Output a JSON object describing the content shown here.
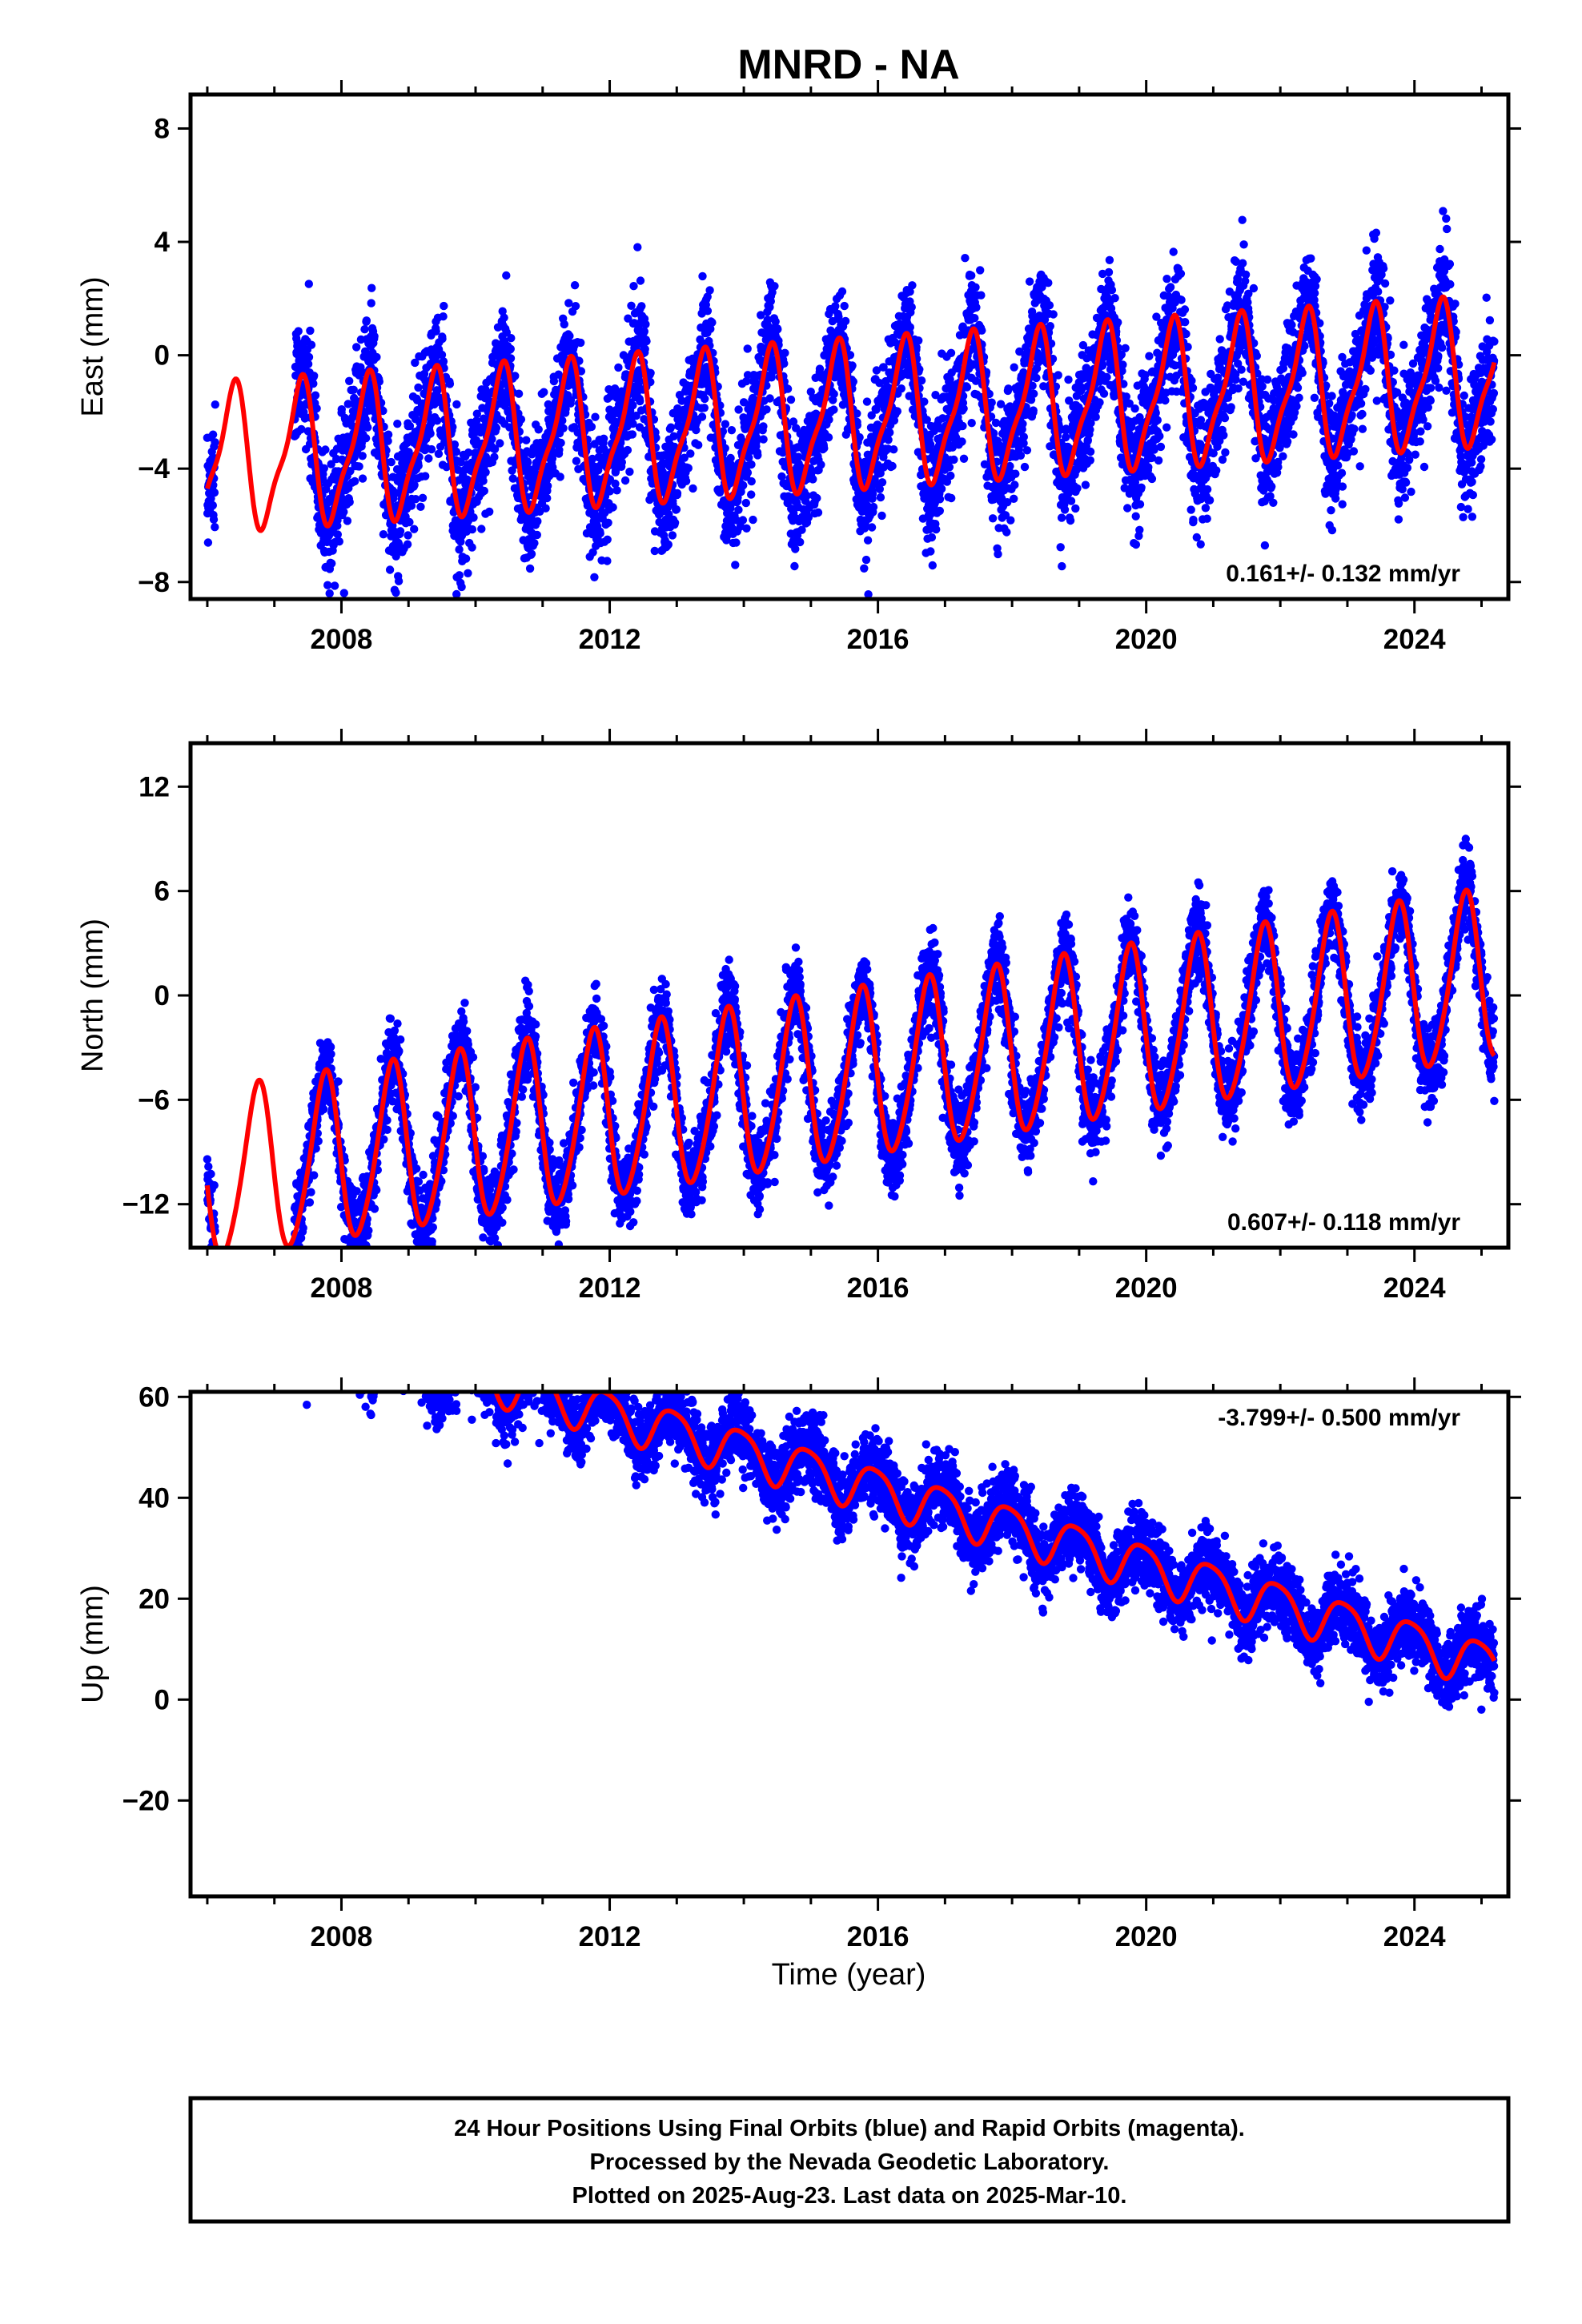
{
  "chart_data": {
    "type": "scatter",
    "title": "MNRD - NA",
    "xlabel": "Time (year)",
    "xlim": [
      2005.75,
      2025.4
    ],
    "x_major_ticks": [
      2008,
      2012,
      2016,
      2020,
      2024
    ],
    "x_tick_labels": [
      "2008",
      "2012",
      "2016",
      "2020",
      "2024"
    ],
    "series_legend": [
      {
        "name": "Final Orbits",
        "color": "#0000ff",
        "marker": "dot"
      },
      {
        "name": "Rapid Orbits",
        "color": "#ff00ff",
        "marker": "dot"
      },
      {
        "name": "Model fit",
        "color": "#ff0000",
        "marker": "line"
      }
    ],
    "data_span": [
      2006.0,
      2025.19
    ],
    "panels": [
      {
        "id": "east",
        "ylabel": "East (mm)",
        "ylim": [
          -8.6,
          9.2
        ],
        "yticks": [
          -8,
          -4,
          0,
          4,
          8
        ],
        "ytick_labels": [
          "−8",
          "−4",
          "0",
          "4",
          "8"
        ],
        "rate_text": "0.161+/- 0.132 mm/yr",
        "rate_position": "bottom-right",
        "model": {
          "offset": -2.2,
          "trend": 0.161,
          "annual_amp": 2.4,
          "annual_phase_yr": 0.12,
          "semiannual_amp": 0.7,
          "semiannual_phase_yr": 0.35
        },
        "scatter_sd": 1.1
      },
      {
        "id": "north",
        "ylabel": "North (mm)",
        "ylim": [
          -14.5,
          14.5
        ],
        "yticks": [
          -12,
          -6,
          0,
          6,
          12
        ],
        "ytick_labels": [
          "−12",
          "−6",
          "0",
          "6",
          "12"
        ],
        "rate_text": "0.607+/- 0.118 mm/yr",
        "rate_position": "bottom-right",
        "model": {
          "offset": -4.8,
          "trend": 0.607,
          "annual_amp": 4.8,
          "annual_phase_yr": 0.5,
          "semiannual_amp": 0.6,
          "semiannual_phase_yr": 0.2
        },
        "scatter_sd": 1.2
      },
      {
        "id": "up",
        "ylabel": "Up (mm)",
        "ylim": [
          -39,
          61
        ],
        "yticks": [
          -20,
          0,
          20,
          40,
          60
        ],
        "ytick_labels": [
          "−20",
          "0",
          "20",
          "40",
          "60"
        ],
        "rate_text": "-3.799+/- 0.500 mm/yr",
        "rate_position": "top-right",
        "model": {
          "offset": 43.5,
          "trend": -3.799,
          "annual_amp": 4.5,
          "annual_phase_yr": 0.7,
          "semiannual_amp": 0.8,
          "semiannual_phase_yr": 0.1
        },
        "scatter_sd": 3.6
      }
    ]
  },
  "footer": {
    "line1": "24 Hour Positions Using Final Orbits (blue) and Rapid Orbits (magenta).",
    "line2": "Processed by the Nevada Geodetic Laboratory.",
    "line3": "Plotted on 2025-Aug-23. Last data on 2025-Mar-10."
  }
}
